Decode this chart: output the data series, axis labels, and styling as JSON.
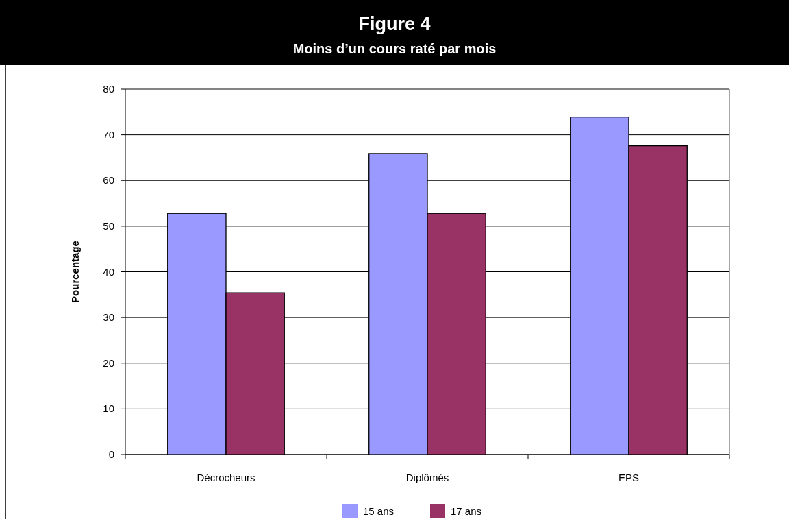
{
  "chart_data": {
    "type": "bar",
    "title": "Figure 4",
    "subtitle": "Moins d’un cours raté par mois",
    "ylabel": "Pourcentage",
    "categories": [
      "Décrocheurs",
      "Diplômés",
      "EPS"
    ],
    "series": [
      {
        "name": "15 ans",
        "color": "#9999ff",
        "values": [
          52.8,
          65.9,
          73.9
        ]
      },
      {
        "name": "17 ans",
        "color": "#993366",
        "values": [
          35.4,
          52.8,
          67.6
        ]
      }
    ],
    "ylim": [
      0,
      80
    ],
    "yticks": [
      0,
      10,
      20,
      30,
      40,
      50,
      60,
      70,
      80
    ],
    "grid": "y",
    "legend": "bottom"
  }
}
